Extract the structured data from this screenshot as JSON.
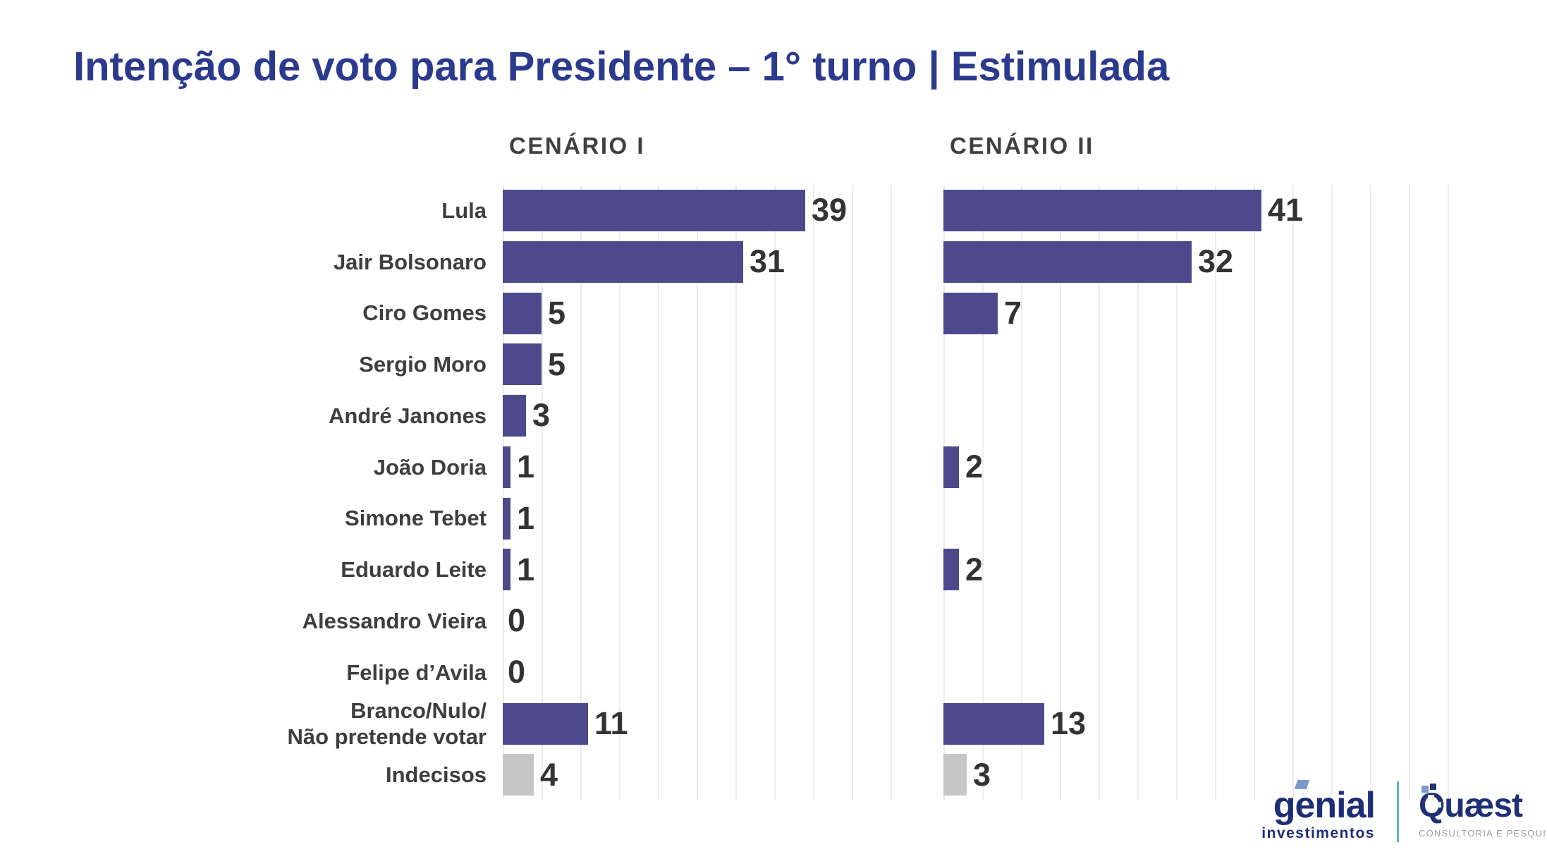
{
  "title": "Intenção de voto para Presidente – 1° turno | Estimulada",
  "chart_data": {
    "type": "bar",
    "orientation": "horizontal",
    "title": "Intenção de voto para Presidente – 1° turno | Estimulada",
    "panels": [
      {
        "label": "CENÁRIO I"
      },
      {
        "label": "CENÁRIO II"
      }
    ],
    "categories": [
      "Lula",
      "Jair Bolsonaro",
      "Ciro Gomes",
      "Sergio Moro",
      "André Janones",
      "João Doria",
      "Simone Tebet",
      "Eduardo Leite",
      "Alessandro Vieira",
      "Felipe d’Avila",
      "Branco/Nulo/\nNão pretende votar",
      "Indecisos"
    ],
    "series": [
      {
        "name": "CENÁRIO I",
        "values": [
          39,
          31,
          5,
          5,
          3,
          1,
          1,
          1,
          0,
          0,
          11,
          4
        ]
      },
      {
        "name": "CENÁRIO II",
        "values": [
          41,
          32,
          7,
          null,
          null,
          2,
          null,
          2,
          null,
          null,
          13,
          3
        ]
      }
    ],
    "muted_index": 11,
    "bar_color": "#4c4a8c",
    "muted_bar_color": "#c6c6c6",
    "value_label_color": "#333333",
    "grid": true,
    "gridline_step": 5,
    "xlim_panel1": [
      0,
      50
    ],
    "xlim_panel2": [
      0,
      65
    ],
    "legend_position": "none",
    "value_labels": true,
    "xlabel": "",
    "ylabel": ""
  },
  "footer": {
    "genial": {
      "wordmark": "genial",
      "subtitle": "investimentos",
      "color": "#1e2d78",
      "accent_color": "#7d99c9"
    },
    "divider_color": "#62b0bc",
    "quaest": {
      "wordmark": "Quæst",
      "subtitle": "CONSULTORIA E PESQUISA",
      "color": "#203176",
      "subtitle_color": "#9aa0a6"
    }
  },
  "colors": {
    "title": "#2c3a8e",
    "panel_header": "#3f3f3f",
    "category_label": "#3e3e3e",
    "gridline": "#ececec",
    "background": "#ffffff"
  }
}
